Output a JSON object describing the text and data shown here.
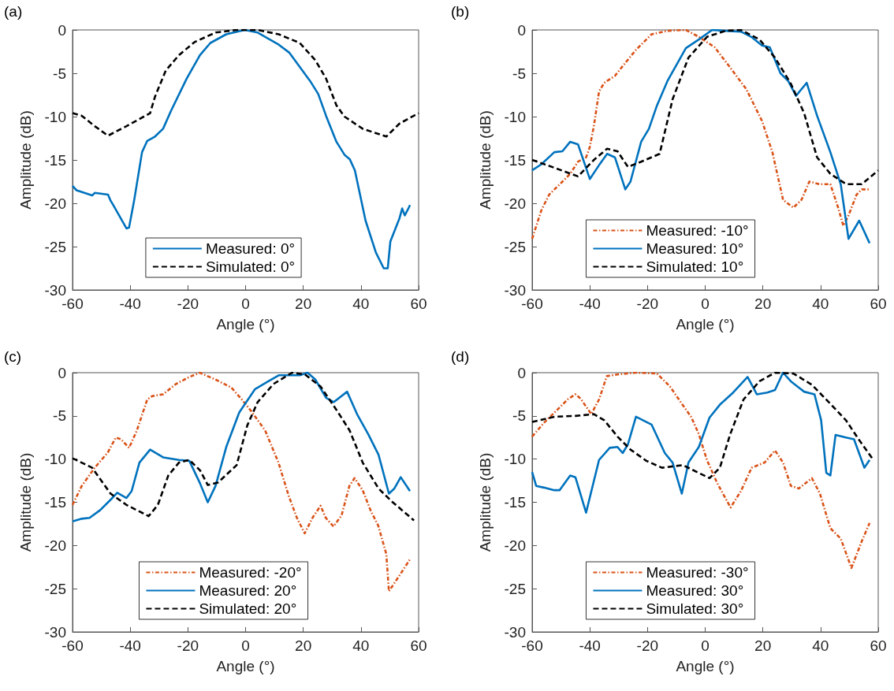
{
  "chart_data": [
    {
      "type": "line",
      "title": "(a)",
      "xlabel": "Angle (°)",
      "ylabel": "Amplitude (dB)",
      "xlim": [
        -60,
        60
      ],
      "xticks": [
        -60,
        -40,
        -20,
        0,
        20,
        40,
        60
      ],
      "ylim": [
        -30,
        0
      ],
      "yticks": [
        -30,
        -25,
        -20,
        -15,
        -10,
        -5,
        0
      ],
      "grid": false,
      "legend": "bottom",
      "marker": "none",
      "series": [
        {
          "name": "Measured: 0°",
          "color": "#0072bd",
          "line_style": "solid",
          "x": [
            -60,
            -58.6,
            -53.2,
            -52.3,
            -47.7,
            -46.8,
            -45.9,
            -41.3,
            -40.4,
            -38.6,
            -35.9,
            -34.1,
            -31.4,
            -28.6,
            -25.8,
            -20.4,
            -15.8,
            -12.2,
            -6.7,
            -0.3,
            4.2,
            11.5,
            15.1,
            22.4,
            25.2,
            27.9,
            31.5,
            34.3,
            36.1,
            37.9,
            41.6,
            45.2,
            47.9,
            49.3,
            50.2,
            53.4,
            54.3,
            55.2,
            56.6,
            57
          ],
          "values": [
            -18,
            -18.5,
            -19.1,
            -18.8,
            -19,
            -19.7,
            -20.2,
            -22.9,
            -22.8,
            -19.6,
            -14.1,
            -12.8,
            -12.3,
            -11.4,
            -9.3,
            -5.6,
            -2.9,
            -1.5,
            -0.5,
            0,
            -0.3,
            -1.7,
            -2.6,
            -5.9,
            -7.4,
            -9.9,
            -12.9,
            -14.4,
            -14.9,
            -16.2,
            -22,
            -25.7,
            -27.5,
            -27.5,
            -24.4,
            -21.7,
            -20.6,
            -21.4,
            -20.5,
            -20.2
          ]
        },
        {
          "name": "Simulated: 0°",
          "color": "#000000",
          "line_style": "dashed",
          "x": [
            -60,
            -56.8,
            -52.3,
            -47.7,
            -41.3,
            -33.1,
            -31.4,
            -27.7,
            -23.1,
            -17.7,
            -10.4,
            -3.1,
            4.2,
            11.5,
            18.8,
            24.2,
            27.9,
            31.5,
            34.3,
            40.6,
            48.8,
            53.4,
            60
          ],
          "values": [
            -9.6,
            -9.9,
            -11.1,
            -12.2,
            -11.1,
            -9.6,
            -7.7,
            -4.7,
            -2.9,
            -1.4,
            -0.3,
            0,
            0,
            -0.5,
            -1.5,
            -3.5,
            -5.6,
            -8.7,
            -10,
            -11.4,
            -12.3,
            -10.8,
            -9.6
          ]
        }
      ]
    },
    {
      "type": "line",
      "title": "(b)",
      "xlabel": "Angle (°)",
      "ylabel": "Amplitude (dB)",
      "xlim": [
        -60,
        60
      ],
      "xticks": [
        -60,
        -40,
        -20,
        0,
        20,
        40,
        60
      ],
      "ylim": [
        -30,
        0
      ],
      "yticks": [
        -30,
        -25,
        -20,
        -15,
        -10,
        -5,
        0
      ],
      "grid": false,
      "legend": "bottom",
      "marker": "none",
      "series": [
        {
          "name": "Measured: -10°",
          "color": "#d95319",
          "line_style": "dashdot",
          "x": [
            -60,
            -56.8,
            -54.1,
            -49.5,
            -46.8,
            -44.1,
            -41.3,
            -40,
            -38.6,
            -36.8,
            -35,
            -31.3,
            -27.7,
            -24,
            -18.6,
            -13.1,
            -6.7,
            -2.2,
            3.3,
            8.8,
            14.2,
            19.7,
            23.3,
            27,
            30.6,
            33.4,
            36.1,
            39.7,
            43.4,
            46.1,
            47.9,
            49.7,
            52.5,
            54.3,
            57
          ],
          "values": [
            -24.1,
            -20.8,
            -19,
            -17.5,
            -16.6,
            -15.2,
            -14.7,
            -13.5,
            -11.1,
            -7.1,
            -6.1,
            -5.3,
            -3.8,
            -2.3,
            -0.5,
            -0.1,
            0,
            -0.8,
            -2,
            -4.4,
            -6.8,
            -10.5,
            -14.1,
            -19.6,
            -20.5,
            -19.6,
            -17.5,
            -17.8,
            -17.8,
            -20.5,
            -22.6,
            -21.4,
            -19,
            -18.4,
            -18.4
          ]
        },
        {
          "name": "Measured: 10°",
          "color": "#0072bd",
          "line_style": "solid",
          "x": [
            -60,
            -56.8,
            -52.3,
            -49.5,
            -46.8,
            -44.1,
            -40,
            -36.8,
            -34,
            -31.3,
            -27.7,
            -25.9,
            -22.2,
            -19.5,
            -16.7,
            -13.1,
            -6.7,
            -2.2,
            2.4,
            7,
            12.4,
            16,
            19.7,
            22.4,
            26.1,
            28.8,
            31.5,
            35.2,
            38.8,
            43.4,
            47,
            49.7,
            53.4,
            57
          ],
          "values": [
            -16.2,
            -15.5,
            -14.1,
            -14,
            -12.9,
            -13.2,
            -17.2,
            -15.6,
            -14.3,
            -14.7,
            -18.4,
            -17.5,
            -12.9,
            -11.4,
            -8.7,
            -5.9,
            -2.1,
            -1.1,
            0,
            -0.1,
            -0.2,
            -0.8,
            -1.8,
            -2,
            -5,
            -5.9,
            -7.6,
            -6.1,
            -9.9,
            -14.1,
            -17.8,
            -24.1,
            -22,
            -24.6
          ]
        },
        {
          "name": "Simulated: 10°",
          "color": "#000000",
          "line_style": "dashed",
          "x": [
            -60,
            -52.3,
            -44.1,
            -38.6,
            -34,
            -30.4,
            -26.8,
            -22.2,
            -15.8,
            -11.3,
            -5.8,
            0.6,
            7,
            12.4,
            18.8,
            24.2,
            29.7,
            34.3,
            38.8,
            43.4,
            48.9,
            54.3,
            60
          ],
          "values": [
            -15,
            -15.9,
            -16.9,
            -15,
            -13.7,
            -14,
            -15.8,
            -15.2,
            -14.3,
            -8,
            -3.2,
            -0.8,
            -0.1,
            0,
            -1.1,
            -3.2,
            -6.2,
            -9.6,
            -14.7,
            -16.6,
            -17.8,
            -17.8,
            -16.2
          ]
        }
      ]
    },
    {
      "type": "line",
      "title": "(c)",
      "xlabel": "Angle (°)",
      "ylabel": "Amplitude (dB)",
      "xlim": [
        -60,
        60
      ],
      "xticks": [
        -60,
        -40,
        -20,
        0,
        20,
        40,
        60
      ],
      "ylim": [
        -30,
        0
      ],
      "yticks": [
        -30,
        -25,
        -20,
        -15,
        -10,
        -5,
        0
      ],
      "grid": false,
      "legend": "bottom",
      "marker": "none",
      "series": [
        {
          "name": "Measured: -20°",
          "color": "#d95319",
          "line_style": "dashdot",
          "x": [
            -60,
            -56.8,
            -52.3,
            -47.7,
            -45,
            -43.2,
            -40.4,
            -37.7,
            -34.1,
            -32.3,
            -28.6,
            -24.1,
            -19.5,
            -15.9,
            -10.4,
            -5,
            -1.3,
            2.3,
            6.8,
            11.4,
            15,
            17.8,
            20.5,
            23.2,
            26,
            27.8,
            30.5,
            33.3,
            36,
            37.8,
            40.6,
            43.3,
            46,
            48.8,
            49.7,
            53.3,
            57
          ],
          "values": [
            -15.3,
            -13.1,
            -11,
            -9.2,
            -7.5,
            -7.7,
            -8.7,
            -6.7,
            -3.1,
            -2.7,
            -2.5,
            -1.3,
            -0.5,
            0,
            -0.8,
            -1.7,
            -3.1,
            -4.6,
            -6.7,
            -10.4,
            -14.3,
            -16.8,
            -18.6,
            -16.8,
            -15.4,
            -16.8,
            -17.8,
            -16.5,
            -13.1,
            -12.2,
            -13.6,
            -15.9,
            -17.7,
            -21,
            -25.3,
            -23.5,
            -21.6
          ]
        },
        {
          "name": "Measured: 20°",
          "color": "#0072bd",
          "line_style": "solid",
          "x": [
            -60,
            -56.8,
            -54.1,
            -50.4,
            -46.8,
            -44.5,
            -41.3,
            -39.5,
            -36.8,
            -33.1,
            -28.6,
            -23.1,
            -19.5,
            -15.8,
            -13.1,
            -10.4,
            -6.7,
            -2.2,
            3.3,
            7.9,
            11.5,
            18.8,
            21.5,
            24.2,
            27.9,
            30.6,
            35.2,
            38.8,
            42.5,
            46.1,
            49.7,
            51.6,
            53.8,
            57
          ],
          "values": [
            -17.2,
            -16.9,
            -16.8,
            -15.9,
            -14.7,
            -13.9,
            -14.5,
            -13.7,
            -10.4,
            -8.9,
            -9.8,
            -10.1,
            -10.2,
            -12.8,
            -15,
            -13.1,
            -8.6,
            -4.6,
            -1.9,
            -1,
            -0.3,
            -0.3,
            0,
            -0.8,
            -2.9,
            -3.4,
            -2.2,
            -4.9,
            -7.1,
            -9.5,
            -14,
            -13.4,
            -12.1,
            -13.7
          ]
        },
        {
          "name": "Simulated: 20°",
          "color": "#000000",
          "line_style": "dashed",
          "x": [
            -60,
            -53.2,
            -46.8,
            -41.3,
            -33.6,
            -30.4,
            -26.8,
            -23.1,
            -19.5,
            -15.8,
            -13.1,
            -9.5,
            -3.1,
            0.6,
            4.2,
            9.7,
            16.1,
            20.6,
            26,
            31.5,
            36.1,
            40.6,
            46.1,
            50.7,
            58.4
          ],
          "values": [
            -9.9,
            -11,
            -14,
            -15.3,
            -16.6,
            -15.3,
            -11.9,
            -10.4,
            -10.1,
            -11.3,
            -13,
            -12.7,
            -10.7,
            -6.1,
            -3.4,
            -1.3,
            0,
            -0.2,
            -1.6,
            -4.3,
            -6.7,
            -10.4,
            -13.4,
            -14.9,
            -17.1
          ]
        }
      ]
    },
    {
      "type": "line",
      "title": "(d)",
      "xlabel": "Angle (°)",
      "ylabel": "Amplitude (dB)",
      "xlim": [
        -60,
        60
      ],
      "xticks": [
        -60,
        -40,
        -20,
        0,
        20,
        40,
        60
      ],
      "ylim": [
        -30,
        0
      ],
      "yticks": [
        -30,
        -25,
        -20,
        -15,
        -10,
        -5,
        0
      ],
      "grid": false,
      "legend": "bottom",
      "marker": "none",
      "series": [
        {
          "name": "Measured: -30°",
          "color": "#d95319",
          "line_style": "dashdot",
          "x": [
            -60,
            -55.9,
            -51.3,
            -47.7,
            -45,
            -43.2,
            -39.5,
            -36.8,
            -34.1,
            -30.4,
            -24,
            -16.7,
            -12.2,
            -8.5,
            -4.9,
            -2.2,
            0.6,
            4.2,
            8.8,
            12.4,
            16.1,
            20.6,
            24.2,
            27,
            29.7,
            32.5,
            37,
            39.8,
            43.4,
            47,
            50.7,
            54.3,
            57
          ],
          "values": [
            -7.4,
            -5.8,
            -4.3,
            -3.1,
            -2.5,
            -3,
            -4.8,
            -3.1,
            -0.4,
            -0.2,
            0,
            -0.1,
            -1.6,
            -3.4,
            -5.1,
            -7.1,
            -10.1,
            -12.8,
            -15.6,
            -13.7,
            -11,
            -10.4,
            -9,
            -10.4,
            -13.1,
            -13.4,
            -12.2,
            -14,
            -18,
            -19.2,
            -22.6,
            -19.5,
            -17.4
          ]
        },
        {
          "name": "Measured: 30°",
          "color": "#0072bd",
          "line_style": "solid",
          "x": [
            -60,
            -58.6,
            -55.9,
            -52.3,
            -50.5,
            -46.8,
            -45,
            -41.3,
            -36.8,
            -33.1,
            -30.4,
            -28.6,
            -26.8,
            -24,
            -18.6,
            -14,
            -11.3,
            -8.1,
            -5.8,
            -2.2,
            1.5,
            5.1,
            9.7,
            14.7,
            17.9,
            21.5,
            24.2,
            27,
            29.7,
            34.3,
            37.9,
            40.2,
            42,
            43.4,
            45.2,
            48.8,
            51.6,
            55.2,
            57
          ],
          "values": [
            -11.5,
            -13.1,
            -13.3,
            -13.6,
            -13.6,
            -11.9,
            -12.1,
            -16.2,
            -10.1,
            -8.7,
            -8.6,
            -9.3,
            -8.3,
            -5.1,
            -6,
            -9.3,
            -10.4,
            -14,
            -10.4,
            -8.6,
            -5.2,
            -3.7,
            -2.3,
            -0.5,
            -2.5,
            -2.3,
            -2,
            0,
            -1,
            -2.2,
            -2.5,
            -5.5,
            -11.6,
            -11.9,
            -7.2,
            -7.5,
            -7.7,
            -11,
            -10.1
          ]
        },
        {
          "name": "Simulated: 30°",
          "color": "#000000",
          "line_style": "dashed",
          "x": [
            -60,
            -52.3,
            -45,
            -38.6,
            -35,
            -30.4,
            -25.9,
            -20.4,
            -15,
            -7.7,
            -2.2,
            1.5,
            5.1,
            8.7,
            13.3,
            18.8,
            24.2,
            30.6,
            37,
            43.4,
            48.8,
            53.4,
            57.9
          ],
          "values": [
            -5.7,
            -5.1,
            -5,
            -4.8,
            -5.5,
            -7.4,
            -8.9,
            -10.2,
            -11,
            -10.7,
            -11.6,
            -12.2,
            -11,
            -7.1,
            -3.1,
            -1,
            0,
            -0.1,
            -1.4,
            -3.6,
            -5.5,
            -7.8,
            -9.9
          ]
        }
      ]
    }
  ]
}
